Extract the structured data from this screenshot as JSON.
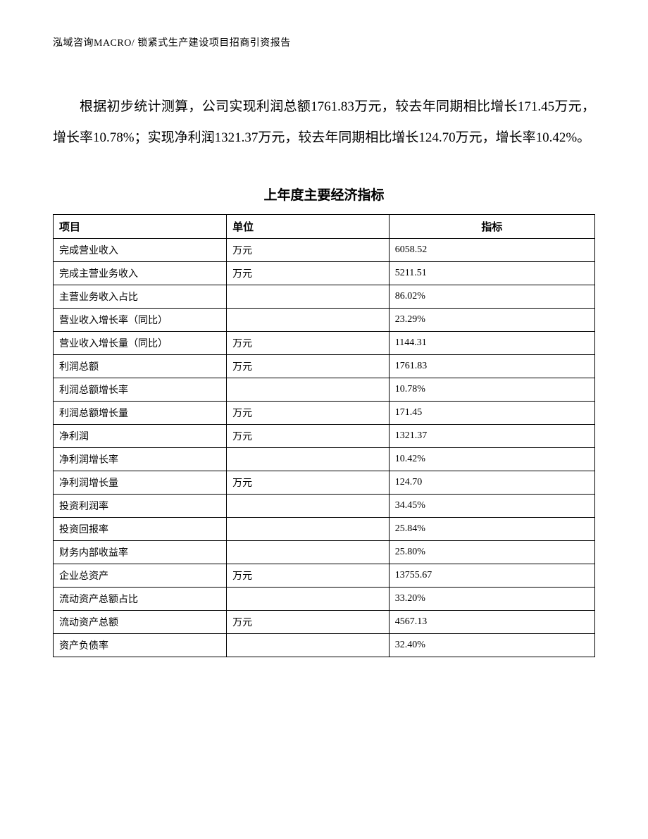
{
  "header": "泓域咨询MACRO/ 锁紧式生产建设项目招商引资报告",
  "paragraph": "根据初步统计测算，公司实现利润总额1761.83万元，较去年同期相比增长171.45万元，增长率10.78%；实现净利润1321.37万元，较去年同期相比增长124.70万元，增长率10.42%。",
  "table": {
    "title": "上年度主要经济指标",
    "columns": [
      "项目",
      "单位",
      "指标"
    ],
    "rows": [
      [
        "完成营业收入",
        "万元",
        "6058.52"
      ],
      [
        "完成主营业务收入",
        "万元",
        "5211.51"
      ],
      [
        "主营业务收入占比",
        "",
        "86.02%"
      ],
      [
        "营业收入增长率（同比）",
        "",
        "23.29%"
      ],
      [
        "营业收入增长量（同比）",
        "万元",
        "1144.31"
      ],
      [
        "利润总额",
        "万元",
        "1761.83"
      ],
      [
        "利润总额增长率",
        "",
        "10.78%"
      ],
      [
        "利润总额增长量",
        "万元",
        "171.45"
      ],
      [
        "净利润",
        "万元",
        "1321.37"
      ],
      [
        "净利润增长率",
        "",
        "10.42%"
      ],
      [
        "净利润增长量",
        "万元",
        "124.70"
      ],
      [
        "投资利润率",
        "",
        "34.45%"
      ],
      [
        "投资回报率",
        "",
        "25.84%"
      ],
      [
        "财务内部收益率",
        "",
        "25.80%"
      ],
      [
        "企业总资产",
        "万元",
        "13755.67"
      ],
      [
        "流动资产总额占比",
        "",
        "33.20%"
      ],
      [
        "流动资产总额",
        "万元",
        "4567.13"
      ],
      [
        "资产负债率",
        "",
        "32.40%"
      ]
    ]
  }
}
